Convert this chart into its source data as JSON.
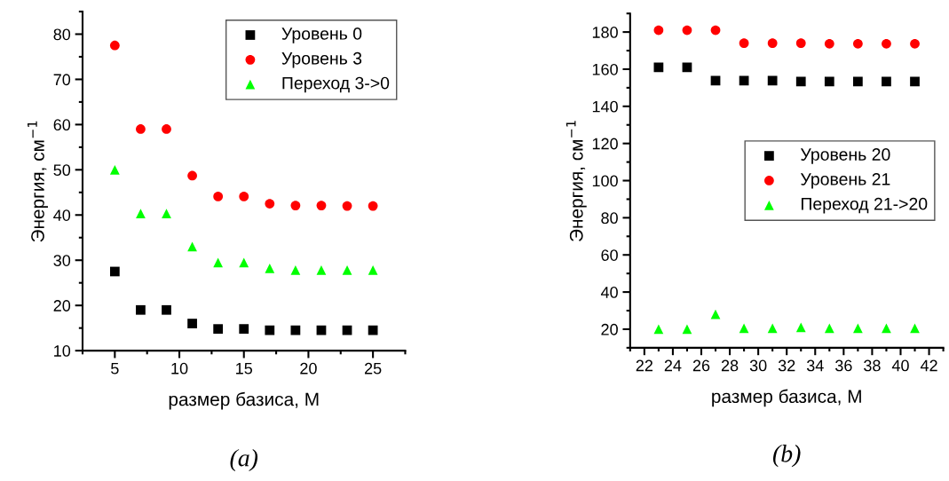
{
  "chart_data": [
    {
      "type": "scatter",
      "xlabel": "размер базиса, M",
      "ylabel": "Энергия, см$^{−1}$",
      "annotations": [
        "(a)"
      ],
      "x": [
        5,
        7,
        9,
        11,
        13,
        15,
        17,
        19,
        21,
        23,
        25
      ],
      "xlim": [
        2.5,
        27.5
      ],
      "xticks": [
        5,
        10,
        15,
        20,
        25
      ],
      "ylim": [
        10,
        85
      ],
      "yticks": [
        10,
        20,
        30,
        40,
        50,
        60,
        70,
        80
      ],
      "grid": false,
      "legend": "top right",
      "series": [
        {
          "name": "Уровень 0",
          "color": "#000000",
          "marker": "square",
          "values": [
            27.5,
            19,
            19,
            16,
            14.8,
            14.8,
            14.5,
            14.5,
            14.5,
            14.5,
            14.5
          ]
        },
        {
          "name": "Уровень 3",
          "color": "#ff0000",
          "marker": "circle",
          "values": [
            77.5,
            59,
            59,
            48.7,
            44.1,
            44.1,
            42.5,
            42.1,
            42.1,
            42.0,
            42.0
          ]
        },
        {
          "name": "Переход 3->0",
          "color": "#00ff00",
          "marker": "triangle",
          "values": [
            50,
            40.3,
            40.3,
            33,
            29.5,
            29.5,
            28.2,
            27.8,
            27.8,
            27.8,
            27.8
          ]
        }
      ]
    },
    {
      "type": "scatter",
      "xlabel": "размер базиса, M",
      "ylabel": "Энергия, см$^{−1}$",
      "annotations": [
        "(b)"
      ],
      "x": [
        23,
        25,
        27,
        29,
        31,
        33,
        35,
        37,
        39,
        41
      ],
      "xlim": [
        21,
        43
      ],
      "xticks": [
        22,
        24,
        26,
        28,
        30,
        32,
        34,
        36,
        38,
        40,
        42
      ],
      "ylim": [
        10,
        190
      ],
      "yticks": [
        20,
        40,
        60,
        80,
        100,
        120,
        140,
        160,
        180
      ],
      "grid": false,
      "legend": "right",
      "series": [
        {
          "name": "Уровень 20",
          "color": "#000000",
          "marker": "square",
          "values": [
            161,
            161,
            153.8,
            153.8,
            153.8,
            153.4,
            153.4,
            153.4,
            153.4,
            153.4
          ]
        },
        {
          "name": "Уровень 21",
          "color": "#ff0000",
          "marker": "circle",
          "values": [
            181,
            181,
            181,
            174,
            174,
            174,
            173.7,
            173.7,
            173.7,
            173.7
          ]
        },
        {
          "name": "Переход 21->20",
          "color": "#00ff00",
          "marker": "triangle",
          "values": [
            20,
            20,
            28,
            20.5,
            20.5,
            21,
            20.5,
            20.5,
            20.5,
            20.5
          ]
        }
      ]
    }
  ]
}
